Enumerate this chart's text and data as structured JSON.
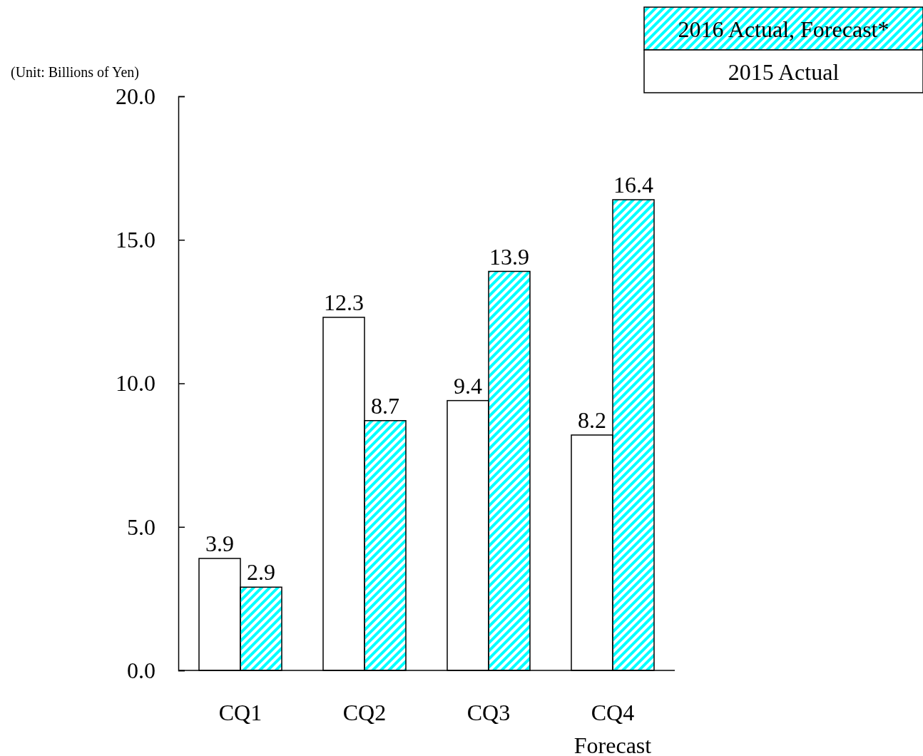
{
  "chart_data": {
    "type": "bar",
    "ylabel": "(Unit: Billions of Yen)",
    "categories": [
      "CQ1",
      "CQ2",
      "CQ3",
      "CQ4\nForecast"
    ],
    "series": [
      {
        "name": "2015 Actual",
        "color": "#ffffff",
        "values": [
          3.9,
          12.3,
          9.4,
          8.2
        ]
      },
      {
        "name": "2016 Actual, Forecast*",
        "color": "#00ffff",
        "values": [
          2.9,
          8.7,
          13.9,
          16.4
        ]
      }
    ],
    "ylim": [
      0,
      20
    ],
    "yticks": [
      {
        "value": 0,
        "label": "0.0"
      },
      {
        "value": 5,
        "label": "5.0"
      },
      {
        "value": 10,
        "label": "10.0"
      },
      {
        "value": 15,
        "label": "15.0"
      },
      {
        "value": 20,
        "label": "20.0"
      }
    ],
    "data_labels": true,
    "legend": "top right",
    "grid": false
  }
}
